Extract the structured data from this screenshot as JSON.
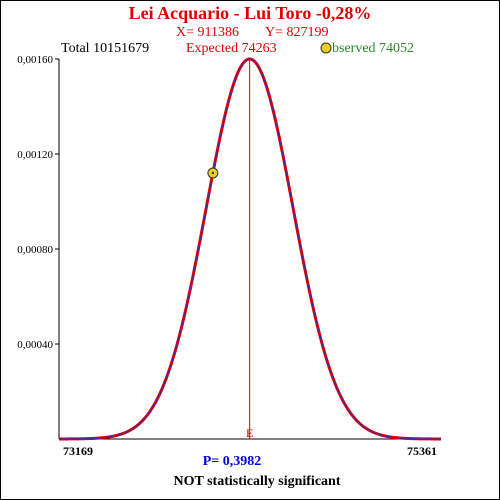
{
  "header": {
    "title": "Lei Acquario - Lui Toro  -0,28%",
    "x_text": "X= 911386",
    "y_text": "Y= 827199",
    "total_text": "Total  10151679",
    "expected_text": "Expected  74263",
    "observed_text": "bserved  74052"
  },
  "footer": {
    "p_text": "P= 0,3982",
    "significance_text": "NOT statistically significant"
  },
  "colors": {
    "curve": "#e00000",
    "curve_inner": "#3030b0",
    "marker_fill": "#e8d020",
    "marker_stroke": "#333333",
    "expected_line": "#e00000"
  },
  "chart_data": {
    "type": "line",
    "title": "Lei Acquario - Lui Toro  -0,28%",
    "xlabel": "",
    "ylabel": "",
    "xlim": [
      73169,
      75361
    ],
    "ylim": [
      0,
      0.0016
    ],
    "y_ticks": [
      0.0004,
      0.0008,
      0.0012,
      0.0016
    ],
    "y_tick_labels": [
      "0,00040",
      "0,00080",
      "0,00120",
      "0,00160"
    ],
    "x_tick_labels": [
      "73169",
      "75361"
    ],
    "distribution": {
      "mean": 74263,
      "peak_density": 0.0016
    },
    "expected": {
      "x": 74263,
      "label": "E"
    },
    "observed": {
      "x": 74052,
      "y": 0.00112
    },
    "p_value": 0.3982
  }
}
